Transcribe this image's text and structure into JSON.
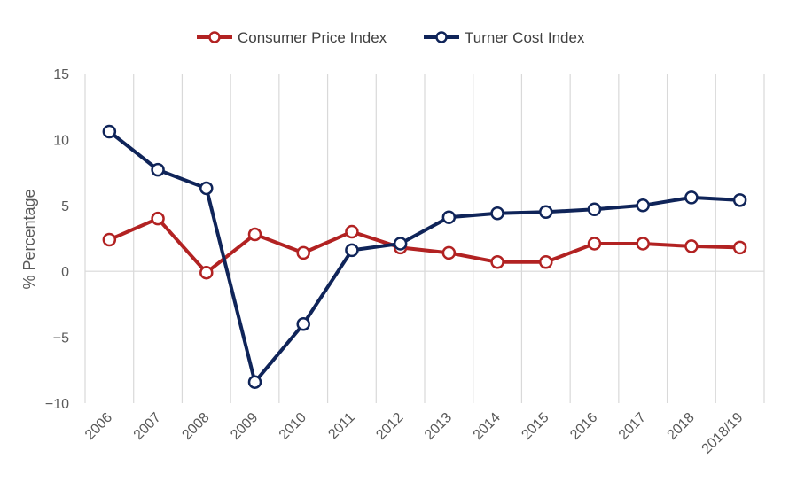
{
  "chart_data": {
    "type": "line",
    "title": "",
    "xlabel": "",
    "ylabel": "% Percentage",
    "ylim": [
      -10,
      15
    ],
    "yticks": [
      15,
      10,
      5,
      0,
      -5,
      -10
    ],
    "ytick_labels": [
      "15",
      "10",
      "5",
      "0",
      "−5",
      "−10"
    ],
    "grid": "vertical",
    "legend_position": "top",
    "categories": [
      "2006",
      "2007",
      "2008",
      "2009",
      "2010",
      "2011",
      "2012",
      "2013",
      "2014",
      "2015",
      "2016",
      "2017",
      "2018",
      "2018/19"
    ],
    "series": [
      {
        "name": "Consumer Price Index",
        "color": "#b22222",
        "values": [
          2.4,
          4.0,
          -0.1,
          2.8,
          1.4,
          3.0,
          1.8,
          1.4,
          0.7,
          0.7,
          2.1,
          2.1,
          1.9,
          1.8
        ]
      },
      {
        "name": "Turner Cost Index",
        "color": "#0f2459",
        "values": [
          10.6,
          7.7,
          6.3,
          -8.4,
          -4.0,
          1.6,
          2.1,
          4.1,
          4.4,
          4.5,
          4.7,
          5.0,
          5.6,
          5.4
        ]
      }
    ]
  }
}
